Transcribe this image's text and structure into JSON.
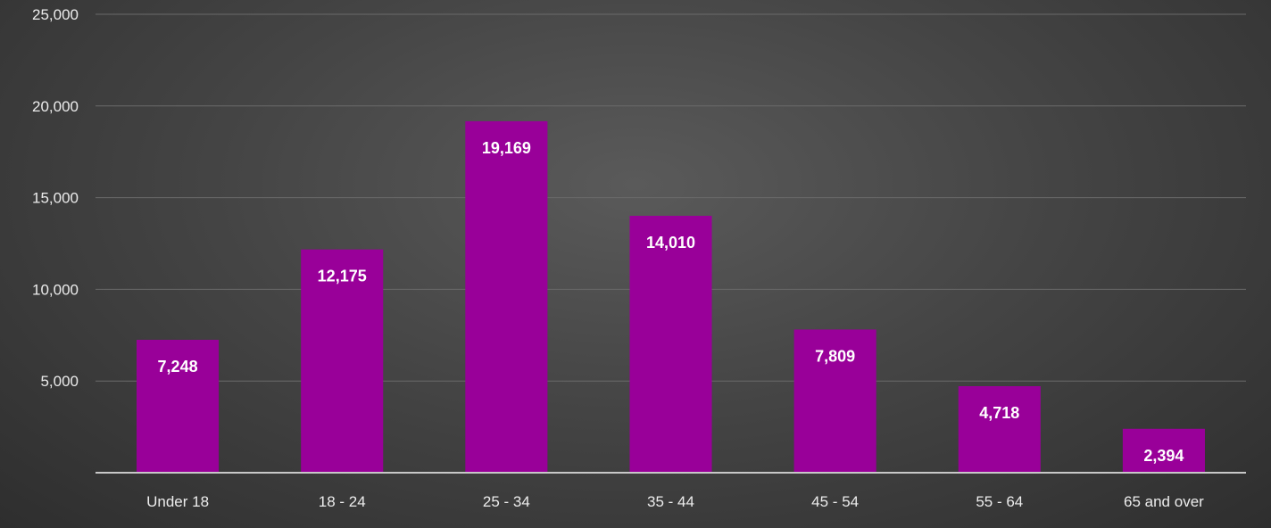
{
  "chart_data": {
    "type": "bar",
    "title": "",
    "xlabel": "",
    "ylabel": "",
    "categories": [
      "Under 18",
      "18 - 24",
      "25 - 34",
      "35 - 44",
      "45 - 54",
      "55 - 64",
      "65 and over"
    ],
    "values": [
      7248,
      12175,
      19169,
      14010,
      7809,
      4718,
      2394
    ],
    "value_labels": [
      "7,248",
      "12,175",
      "19,169",
      "14,010",
      "7,809",
      "4,718",
      "2,394"
    ],
    "ylim": [
      0,
      25000
    ],
    "y_ticks": [
      5000,
      10000,
      15000,
      20000,
      25000
    ],
    "y_tick_labels": [
      "5,000",
      "10,000",
      "15,000",
      "20,000",
      "25,000"
    ],
    "grid": true,
    "legend": "none",
    "bar_color": "#990099",
    "background_color": "#444444"
  }
}
